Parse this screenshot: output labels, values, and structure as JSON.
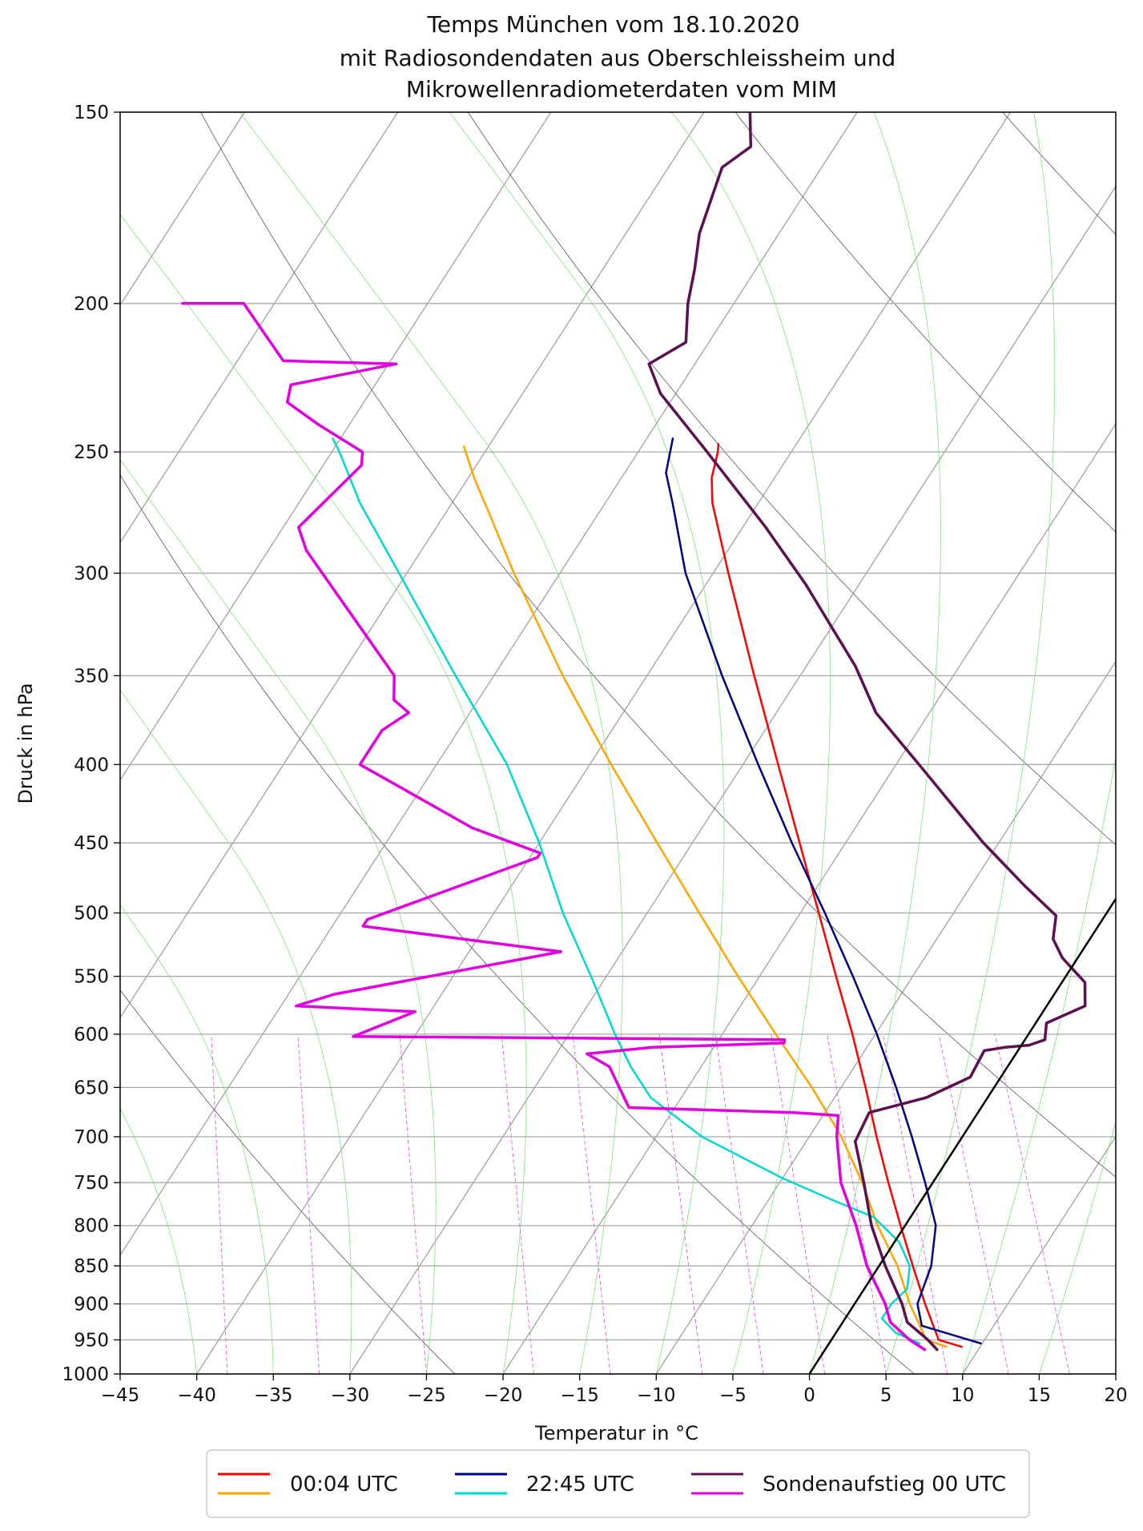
{
  "chart_data": {
    "type": "line",
    "subtype": "skew-T log-p diagram",
    "title": [
      "Temps München vom 18.10.2020",
      "mit Radiosondendaten aus Oberschleissheim und",
      "Mikrowellenradiometerdaten vom MIM"
    ],
    "xlabel": "Temperatur in °C",
    "ylabel": "Druck in hPa",
    "xlim": [
      -45,
      20
    ],
    "ylim": [
      1000,
      150
    ],
    "y_scale": "log",
    "grid": true,
    "legend_position": "bottom-center",
    "x_ticks": [
      "−45",
      "−40",
      "−35",
      "−30",
      "−25",
      "−20",
      "−15",
      "−10",
      "−5",
      "0",
      "5",
      "10",
      "15",
      "20"
    ],
    "y_ticks": [
      "1000",
      "950",
      "900",
      "850",
      "800",
      "750",
      "700",
      "650",
      "600",
      "550",
      "500",
      "450",
      "400",
      "350",
      "300",
      "250",
      "200",
      "150"
    ],
    "legend": [
      {
        "label": "00:04 UTC",
        "colors": [
          "#ff0000",
          "#ffa500"
        ]
      },
      {
        "label": "22:45 UTC",
        "colors": [
          "#000080",
          "#00d8d0"
        ]
      },
      {
        "label": "Sondenaufstieg 00 UTC",
        "colors": [
          "#5c1050",
          "#e000e0"
        ]
      }
    ],
    "series": [
      {
        "source": "MWR 00:04 UTC",
        "variable": "temperature",
        "color": "#ff0000",
        "width": 2.5,
        "points": [
          [
            960,
            8.8
          ],
          [
            950,
            7.0
          ],
          [
            900,
            4.6
          ],
          [
            850,
            2.2
          ],
          [
            800,
            -0.3
          ],
          [
            750,
            -2.9
          ],
          [
            700,
            -5.6
          ],
          [
            650,
            -8.4
          ],
          [
            600,
            -11.5
          ],
          [
            550,
            -15.0
          ],
          [
            500,
            -18.8
          ],
          [
            450,
            -23.0
          ],
          [
            400,
            -27.7
          ],
          [
            350,
            -33.0
          ],
          [
            300,
            -39.0
          ],
          [
            270,
            -43.0
          ],
          [
            260,
            -44.1
          ],
          [
            250,
            -44.8
          ],
          [
            247,
            -45.1
          ]
        ]
      },
      {
        "source": "MWR 00:04 UTC",
        "variable": "dewpoint",
        "color": "#ffa500",
        "width": 2.5,
        "points": [
          [
            960,
            7.8
          ],
          [
            950,
            6.2
          ],
          [
            900,
            3.6
          ],
          [
            850,
            1.2
          ],
          [
            800,
            -1.8
          ],
          [
            750,
            -4.6
          ],
          [
            700,
            -7.9
          ],
          [
            650,
            -11.9
          ],
          [
            600,
            -16.5
          ],
          [
            550,
            -21.4
          ],
          [
            500,
            -26.6
          ],
          [
            450,
            -32.3
          ],
          [
            400,
            -38.6
          ],
          [
            350,
            -45.5
          ],
          [
            300,
            -53.0
          ],
          [
            275,
            -57.0
          ],
          [
            260,
            -59.6
          ],
          [
            248,
            -61.6
          ]
        ]
      },
      {
        "source": "MWR 22:45 UTC",
        "variable": "temperature",
        "color": "#000080",
        "width": 2.5,
        "points": [
          [
            955,
            9.9
          ],
          [
            930,
            5.3
          ],
          [
            900,
            4.1
          ],
          [
            850,
            3.4
          ],
          [
            800,
            2.0
          ],
          [
            750,
            -0.5
          ],
          [
            700,
            -3.3
          ],
          [
            650,
            -6.4
          ],
          [
            600,
            -9.9
          ],
          [
            550,
            -13.9
          ],
          [
            500,
            -18.4
          ],
          [
            450,
            -23.5
          ],
          [
            400,
            -29.0
          ],
          [
            350,
            -35.1
          ],
          [
            300,
            -41.8
          ],
          [
            270,
            -45.6
          ],
          [
            258,
            -47.3
          ],
          [
            245,
            -48.3
          ]
        ]
      },
      {
        "source": "MWR 22:45 UTC",
        "variable": "dewpoint",
        "color": "#00d8d0",
        "width": 2.5,
        "points": [
          [
            955,
            5.9
          ],
          [
            940,
            3.9
          ],
          [
            920,
            2.4
          ],
          [
            900,
            2.4
          ],
          [
            880,
            2.8
          ],
          [
            850,
            2.0
          ],
          [
            820,
            0.3
          ],
          [
            790,
            -2.4
          ],
          [
            770,
            -5.8
          ],
          [
            745,
            -10.0
          ],
          [
            700,
            -17.0
          ],
          [
            660,
            -22.0
          ],
          [
            630,
            -24.6
          ],
          [
            600,
            -27.0
          ],
          [
            550,
            -31.0
          ],
          [
            500,
            -35.5
          ],
          [
            450,
            -40.0
          ],
          [
            400,
            -45.4
          ],
          [
            350,
            -52.5
          ],
          [
            300,
            -60.5
          ],
          [
            270,
            -66.0
          ],
          [
            250,
            -69.5
          ],
          [
            245,
            -70.5
          ]
        ]
      },
      {
        "source": "Sonde 00 UTC",
        "variable": "temperature",
        "color": "#5c1050",
        "width": 3.5,
        "points": [
          [
            964,
            7.3
          ],
          [
            950,
            6.3
          ],
          [
            925,
            4.2
          ],
          [
            900,
            3.1
          ],
          [
            850,
            0.4
          ],
          [
            800,
            -2.2
          ],
          [
            750,
            -4.5
          ],
          [
            705,
            -6.8
          ],
          [
            675,
            -7.1
          ],
          [
            660,
            -4.0
          ],
          [
            640,
            -2.0
          ],
          [
            615,
            -2.2
          ],
          [
            612,
            -1.0
          ],
          [
            610,
            0.5
          ],
          [
            605,
            1.3
          ],
          [
            590,
            0.7
          ],
          [
            575,
            2.5
          ],
          [
            555,
            1.5
          ],
          [
            535,
            -1.0
          ],
          [
            520,
            -2.4
          ],
          [
            502,
            -3.2
          ],
          [
            480,
            -6.5
          ],
          [
            450,
            -11.0
          ],
          [
            400,
            -18.5
          ],
          [
            370,
            -23.5
          ],
          [
            345,
            -26.8
          ],
          [
            305,
            -33.5
          ],
          [
            280,
            -38.5
          ],
          [
            250,
            -45.5
          ],
          [
            229,
            -51.0
          ],
          [
            219,
            -53.0
          ],
          [
            212,
            -51.5
          ],
          [
            200,
            -53.0
          ],
          [
            190,
            -54.0
          ],
          [
            180,
            -55.2
          ],
          [
            163,
            -56.5
          ],
          [
            158,
            -55.5
          ],
          [
            150,
            -57.0
          ]
        ]
      },
      {
        "source": "Sonde 00 UTC",
        "variable": "dewpoint",
        "color": "#e000e0",
        "width": 3.5,
        "points": [
          [
            964,
            6.5
          ],
          [
            950,
            5.1
          ],
          [
            925,
            3.1
          ],
          [
            900,
            2.0
          ],
          [
            850,
            -0.8
          ],
          [
            800,
            -3.2
          ],
          [
            750,
            -6.0
          ],
          [
            700,
            -8.2
          ],
          [
            678,
            -9.0
          ],
          [
            675,
            -12.0
          ],
          [
            670,
            -23.0
          ],
          [
            630,
            -26.0
          ],
          [
            618,
            -28.0
          ],
          [
            612,
            -24.0
          ],
          [
            608,
            -15.6
          ],
          [
            605,
            -15.7
          ],
          [
            602,
            -44.0
          ],
          [
            580,
            -41.0
          ],
          [
            575,
            -49.0
          ],
          [
            565,
            -47.0
          ],
          [
            530,
            -34.0
          ],
          [
            510,
            -48.0
          ],
          [
            505,
            -48.0
          ],
          [
            460,
            -39.5
          ],
          [
            457,
            -39.5
          ],
          [
            440,
            -45.0
          ],
          [
            400,
            -55.0
          ],
          [
            380,
            -55.0
          ],
          [
            370,
            -54.0
          ],
          [
            363,
            -55.5
          ],
          [
            350,
            -56.5
          ],
          [
            290,
            -67.5
          ],
          [
            280,
            -69.0
          ],
          [
            255,
            -67.5
          ],
          [
            250,
            -68.0
          ],
          [
            240,
            -72.0
          ],
          [
            232,
            -75.0
          ],
          [
            226,
            -75.5
          ],
          [
            219,
            -69.5
          ],
          [
            218,
            -77.0
          ],
          [
            200,
            -82.0
          ],
          [
            200,
            -86.0
          ]
        ]
      },
      {
        "source": "reference",
        "variable": "isotherm 0 °C",
        "color": "#000000",
        "width": 2.5,
        "points": [
          [
            1000,
            0.0
          ],
          [
            365,
            0.0
          ]
        ]
      }
    ],
    "background_lines": {
      "isotherms": "grey, every 5 °C, skewed",
      "dry_adiabats": "dark grey",
      "moist_adiabats": "light green",
      "mixing_ratio_lines": "magenta dashed"
    }
  }
}
